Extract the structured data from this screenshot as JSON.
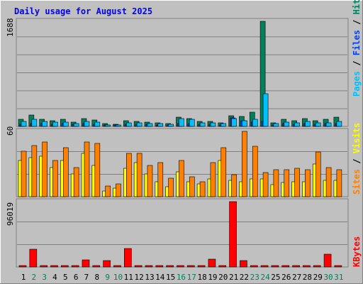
{
  "title": "Daily usage for August 2025",
  "colors": {
    "hits": "#00805c",
    "files": "#0040ff",
    "pages": "#00c0ff",
    "visits": "#ffff00",
    "sites": "#ff8000",
    "kbytes": "#ff0000",
    "title": "#0000ff",
    "weekend": "#00805c",
    "weekday": "#000000",
    "panel": "#c0c0c0"
  },
  "chart_data": [
    {
      "type": "bar",
      "panel": "top",
      "max_label": "1688",
      "ylim": [
        0,
        1688
      ],
      "series_labels": [
        "Pages",
        "Files",
        "Hits"
      ],
      "categories": [
        "1",
        "2",
        "3",
        "4",
        "5",
        "6",
        "7",
        "8",
        "9",
        "10",
        "11",
        "12",
        "13",
        "14",
        "15",
        "16",
        "17",
        "18",
        "19",
        "20",
        "21",
        "22",
        "23",
        "24",
        "25",
        "26",
        "27",
        "28",
        "29",
        "30",
        "31"
      ],
      "series": [
        {
          "name": "Hits",
          "values": [
            110,
            180,
            115,
            90,
            110,
            70,
            120,
            100,
            40,
            35,
            90,
            80,
            70,
            60,
            45,
            150,
            130,
            80,
            80,
            60,
            175,
            165,
            230,
            1688,
            60,
            115,
            95,
            130,
            90,
            110,
            150
          ]
        },
        {
          "name": "Files",
          "values": [
            35,
            45,
            40,
            35,
            40,
            30,
            40,
            35,
            15,
            12,
            35,
            30,
            30,
            25,
            20,
            50,
            45,
            30,
            30,
            25,
            140,
            90,
            70,
            85,
            20,
            40,
            35,
            45,
            35,
            40,
            45
          ]
        },
        {
          "name": "Pages",
          "values": [
            80,
            110,
            80,
            70,
            70,
            50,
            80,
            70,
            25,
            20,
            60,
            60,
            50,
            45,
            35,
            120,
            110,
            60,
            60,
            40,
            120,
            90,
            110,
            530,
            40,
            70,
            60,
            80,
            60,
            60,
            80
          ]
        }
      ]
    },
    {
      "type": "bar",
      "panel": "middle",
      "max_label": "60",
      "ylim": [
        0,
        60
      ],
      "series_labels": [
        "Sites",
        "Visits"
      ],
      "categories": [
        "1",
        "2",
        "3",
        "4",
        "5",
        "6",
        "7",
        "8",
        "9",
        "10",
        "11",
        "12",
        "13",
        "14",
        "15",
        "16",
        "17",
        "18",
        "19",
        "20",
        "21",
        "22",
        "23",
        "24",
        "25",
        "26",
        "27",
        "28",
        "29",
        "30",
        "31"
      ],
      "series": [
        {
          "name": "Visits",
          "values": [
            33,
            36,
            37,
            27,
            33,
            21,
            40,
            29,
            5,
            8,
            26,
            31,
            21,
            14,
            9,
            23,
            14,
            12,
            16,
            33,
            15,
            14,
            16,
            16,
            11,
            13,
            14,
            14,
            30,
            15,
            15
          ]
        },
        {
          "name": "Sites",
          "values": [
            42,
            47,
            50,
            33,
            45,
            27,
            50,
            49,
            10,
            12,
            40,
            40,
            29,
            31,
            17,
            33,
            18,
            14,
            31,
            45,
            20,
            60,
            46,
            22,
            25,
            25,
            26,
            25,
            41,
            27,
            25
          ]
        }
      ]
    },
    {
      "type": "bar",
      "panel": "bottom",
      "max_label": "96019",
      "ylim": [
        0,
        96019
      ],
      "series_labels": [
        "KBytes"
      ],
      "categories": [
        "1",
        "2",
        "3",
        "4",
        "5",
        "6",
        "7",
        "8",
        "9",
        "10",
        "11",
        "12",
        "13",
        "14",
        "15",
        "16",
        "17",
        "18",
        "19",
        "20",
        "21",
        "22",
        "23",
        "24",
        "25",
        "26",
        "27",
        "28",
        "29",
        "30",
        "31"
      ],
      "series": [
        {
          "name": "KBytes",
          "values": [
            400,
            26000,
            2000,
            500,
            400,
            400,
            10500,
            500,
            9000,
            500,
            27500,
            500,
            400,
            400,
            400,
            400,
            400,
            400,
            11000,
            400,
            96019,
            9500,
            400,
            400,
            400,
            400,
            400,
            400,
            400,
            19000,
            400
          ]
        }
      ]
    }
  ]
}
